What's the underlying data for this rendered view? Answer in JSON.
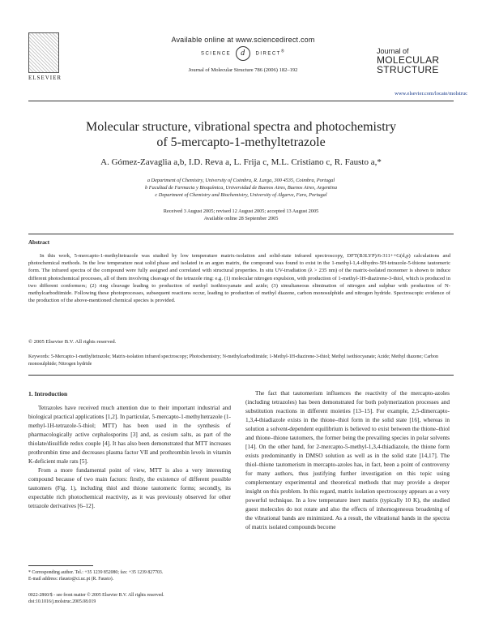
{
  "header": {
    "available_online": "Available online at www.sciencedirect.com",
    "science_direct": [
      "SCIENCE",
      "DIRECT",
      "®"
    ],
    "publisher_logo_text": "ELSEVIER",
    "journal_ref": "Journal of Molecular Structure 786 (2006) 182–192",
    "journal_logo_line1": "Journal of",
    "journal_logo_line2": "MOLECULAR",
    "journal_logo_line3": "STRUCTURE",
    "web_link": "www.elsevier.com/locate/molstruc"
  },
  "article": {
    "title_line1": "Molecular structure, vibrational spectra and photochemistry",
    "title_line2": "of 5-mercapto-1-methyltetrazole",
    "authors": "A. Gómez-Zavaglia a,b, I.D. Reva a, L. Frija c, M.L. Cristiano c, R. Fausto a,*",
    "affiliations": [
      "a Department of Chemistry, University of Coimbra, R. Larga, 300 4535, Coimbra, Portugal",
      "b Facultad de Farmacia y Bioquímica, Universidad de Buenos Aires, Buenos Aires, Argentina",
      "c Department of Chemistry and Biochemistry, University of Algarve, Faro, Portugal"
    ],
    "received": "Received 3 August 2005; revised 12 August 2005; accepted 13 August 2005",
    "online": "Available online 28 September 2005"
  },
  "abstract": {
    "heading": "Abstract",
    "text": "In this work, 5-mercapto-1-methyltetrazole was studied by low temperature matrix-isolation and solid-state infrared spectroscopy, DFT(B3LYP)/6-311++G(d,p) calculations and photochemical methods. In the low temperature neat solid phase and isolated in an argon matrix, the compound was found to exist in the 1-methyl-1,4-dihydro-5H-tetrazole-5-thione tautomeric form. The infrared spectra of the compound were fully assigned and correlated with structural properties. In situ UV-irradiation (λ > 235 nm) of the matrix-isolated monomer is shown to induce different photochemical processes, all of them involving cleavage of the tetrazole ring: e.g. (1) molecular nitrogen expulsion, with production of 1-methyl-1H-diazirene-3-thiol, which is produced in two different conformers; (2) ring cleavage leading to production of methyl isothiocyanate and azide; (3) simultaneous elimination of nitrogen and sulphur with production of N-methylcarbodiimide. Following these photoprocesses, subsequent reactions occur, leading to production of methyl diazene, carbon monosulphide and nitrogen hydride. Spectroscopic evidence of the production of the above-mentioned chemical species is provided.",
    "copyright": "© 2005 Elsevier B.V. All rights reserved."
  },
  "keywords": "Keywords: 5-Mercapto-1-methyltetrazole; Matrix-isolation infrared spectroscopy; Photochemistry; N-methylcarbodiimide; 1-Methyl-1H-diazirene-3-thiol; Methyl isothiocyanate; Azide; Methyl diazene; Carbon monosulphide; Nitrogen hydride",
  "intro": {
    "heading": "1. Introduction",
    "para1": "Tetrazoles have received much attention due to their important industrial and biological practical applications [1,2]. In particular, 5-mercapto-1-methyltetrazole (1-methyl-1H-tetrazole-5-thiol; MTT) has been used in the synthesis of pharmacologically active cephalosporins [3] and, as cesium salts, as part of the thiolate/disulfide redox couple [4]. It has also been demonstrated that MTT increases prothrombin time and decreases plasma factor VII and prothrombin levels in vitamin K-deficient male rats [5].",
    "para2": "From a more fundamental point of view, MTT is also a very interesting compound because of two main factors: firstly, the existence of different possible tautomers (Fig. 1), including thiol and thione tautomeric forms; secondly, its expectable rich photochemical reactivity, as it was previously observed for other tetrazole derivatives [6–12].",
    "right_para": "The fact that tautomerism influences the reactivity of the mercapto-azoles (including tetrazoles) has been demonstrated for both polymerization processes and substitution reactions in different moieties [13–15]. For example, 2,5-dimercapto-1,3,4-thiadiazole exists in the thione–thiol form in the solid state [16], whereas in solution a solvent-dependent equilibrium is believed to exist between the thione–thiol and thione–thione tautomers, the former being the prevailing species in polar solvents [14]. On the other hand, for 2-mercapto-5-methyl-1,3,4-thiadiazole, the thione form exists predominantly in DMSO solution as well as in the solid state [14,17]. The thiol–thione tautomerism in mercapto-azoles has, in fact, been a point of controversy for many authors, thus justifying further investigation on this topic using complementary experimental and theoretical methods that may provide a deeper insight on this problem. In this regard, matrix isolation spectroscopy appears as a very powerful technique. In a low temperature inert matrix (typically 10 K), the studied guest molecules do not rotate and also the effects of inhomogeneous broadening of the vibrational bands are minimized. As a result, the vibrational bands in the spectra of matrix isolated compounds become"
  },
  "footnote": {
    "corresponding": "* Corresponding author. Tel.: +35 1239 852080; fax: +35 1239 827703.",
    "email": "E-mail address: rfausto@ci.uc.pt (R. Fausto).",
    "issn": "0022-2860/$ - see front matter © 2005 Elsevier B.V. All rights reserved.",
    "doi": "doi:10.1016/j.molstruc.2005.08.019"
  }
}
